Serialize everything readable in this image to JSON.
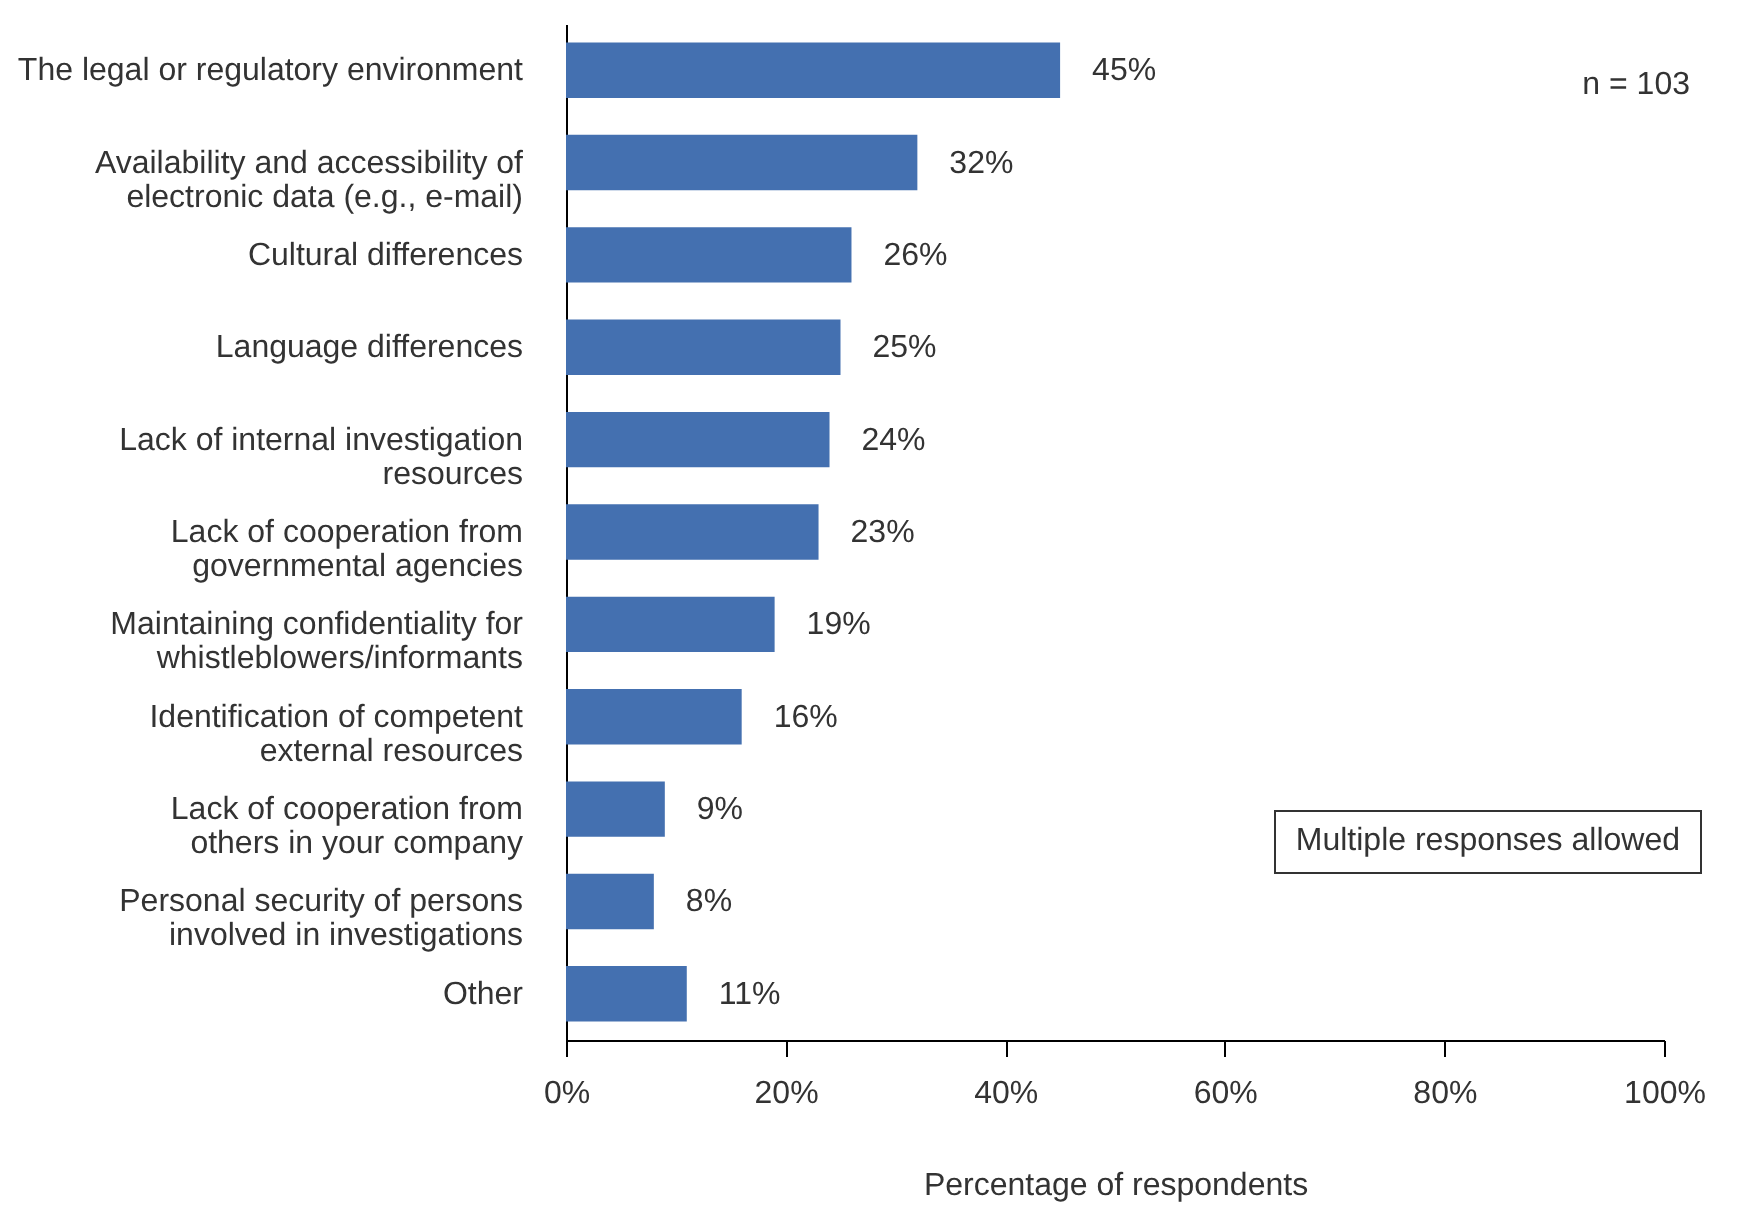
{
  "chart_data": {
    "type": "bar",
    "orientation": "horizontal",
    "xlabel": "Percentage of respondents",
    "categories": [
      "The legal or regulatory environment",
      "Availability and accessibility of electronic data (e.g., e-mail)",
      "Cultural differences",
      "Language differences",
      "Lack of internal investigation resources",
      "Lack of cooperation from governmental agencies",
      "Maintaining confidentiality for whistleblowers/informants",
      "Identification of competent external resources",
      "Lack of cooperation from others in your company",
      "Personal security of persons involved in investigations",
      "Other"
    ],
    "values": [
      45,
      32,
      26,
      25,
      24,
      23,
      19,
      16,
      9,
      8,
      11
    ],
    "value_labels": [
      "45%",
      "32%",
      "26%",
      "25%",
      "24%",
      "23%",
      "19%",
      "16%",
      "9%",
      "8%",
      "11%"
    ],
    "color": "#4470b0",
    "xlim": [
      0,
      100
    ],
    "xticks": [
      {
        "value": 0,
        "label": "0%"
      },
      {
        "value": 20,
        "label": "20%"
      },
      {
        "value": 40,
        "label": "40%"
      },
      {
        "value": 60,
        "label": "60%"
      },
      {
        "value": 80,
        "label": "80%"
      },
      {
        "value": 100,
        "label": "100%"
      }
    ],
    "annotations": [
      "n = 103",
      "Multiple responses allowed"
    ],
    "grid": false
  }
}
